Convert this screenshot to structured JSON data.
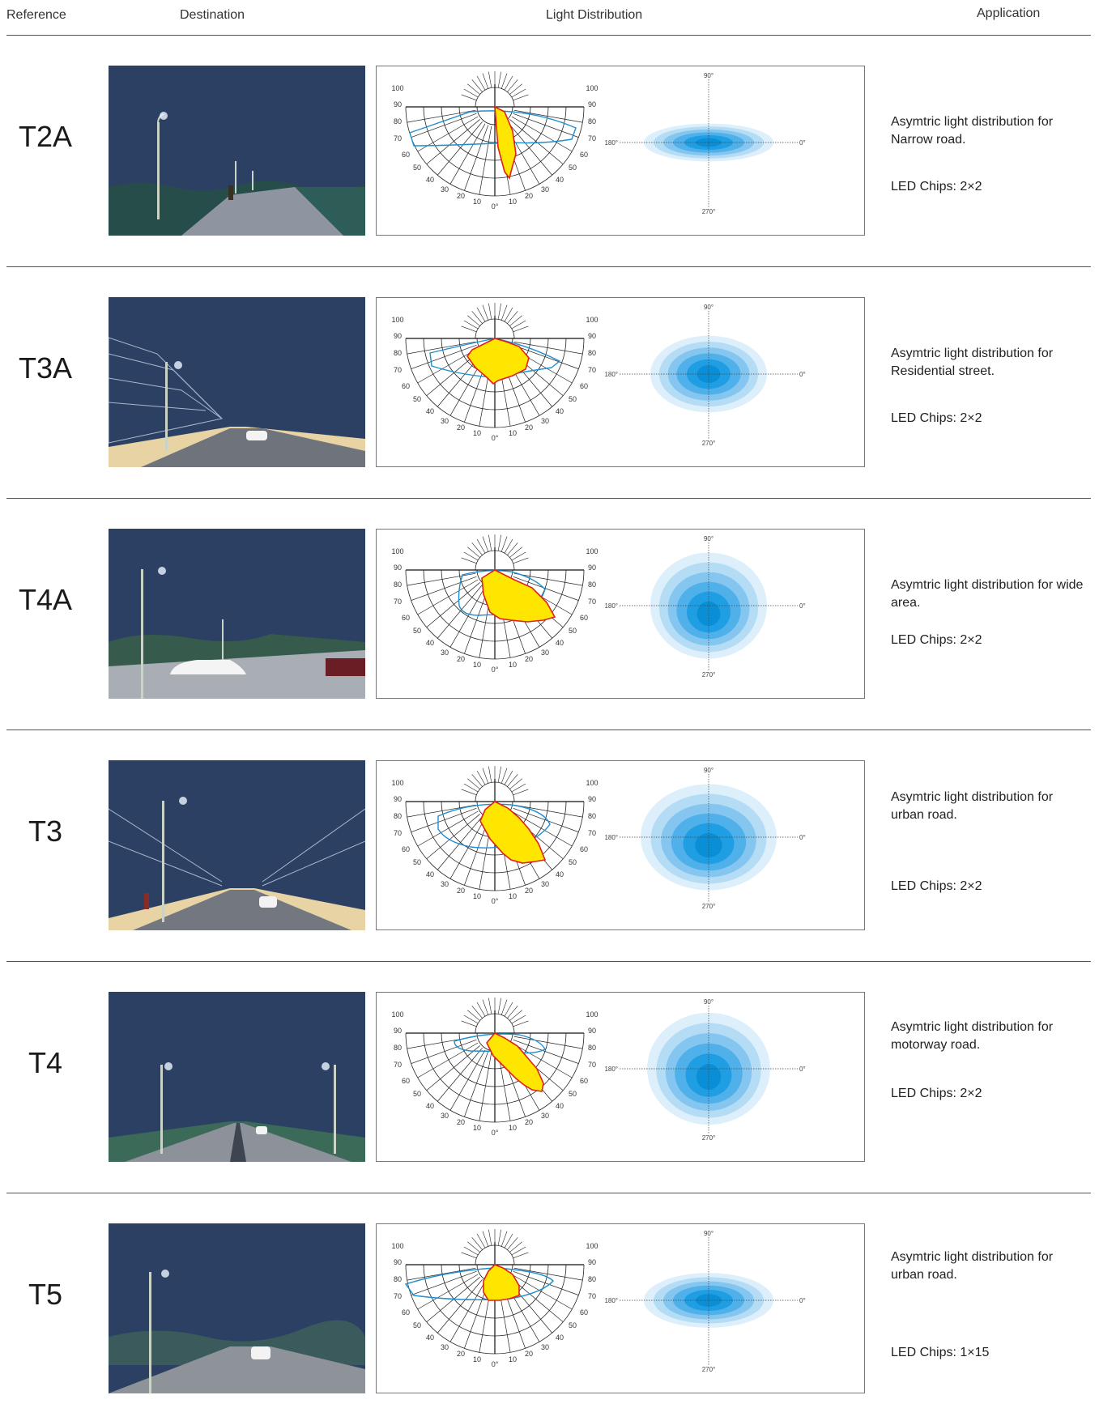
{
  "headers": {
    "reference": "Reference",
    "destination": "Destination",
    "light_distribution": "Light Distribution",
    "application": "Application"
  },
  "polar_labels": {
    "left": [
      "100",
      "90",
      "80",
      "70",
      "60",
      "50",
      "40",
      "30",
      "20",
      "10"
    ],
    "right": [
      "100",
      "90",
      "80",
      "70",
      "60",
      "50",
      "40",
      "30",
      "20",
      "10"
    ],
    "zero": "0°"
  },
  "iso_labels": {
    "top": "90°",
    "bottom": "270°",
    "left": "180°",
    "right": "0°"
  },
  "colors": {
    "night_sky": "#2c4064",
    "polar_fill": "#ffe600",
    "polar_outline": "#e0201a",
    "polar_blue": "#1f8fd0",
    "iso_blue_light": "#c9e6f8",
    "iso_blue_dark": "#0b9de3"
  },
  "rows": [
    {
      "code": "T2A",
      "desc": "Asymtric light distribution for Narrow road.",
      "chips": "LED Chips: 2×2",
      "scene": "walkway-scene"
    },
    {
      "code": "T3A",
      "desc": "Asymtric light distribution for Residential street.",
      "chips": "LED Chips: 2×2",
      "scene": "residential-street-scene"
    },
    {
      "code": "T4A",
      "desc": "Asymtric light distribution for wide area.",
      "chips": "LED Chips: 2×2",
      "scene": "parking-area-scene"
    },
    {
      "code": "T3",
      "desc": "Asymtric light distribution for urban road.",
      "chips": "LED Chips: 2×2",
      "scene": "urban-road-scene"
    },
    {
      "code": "T4",
      "desc": "Asymtric light distribution for motorway road.",
      "chips": "LED Chips: 2×2",
      "scene": "motorway-scene"
    },
    {
      "code": "T5",
      "desc": "Asymtric light distribution for urban road.",
      "chips": "LED Chips: 1×15",
      "scene": "road-scene"
    }
  ]
}
